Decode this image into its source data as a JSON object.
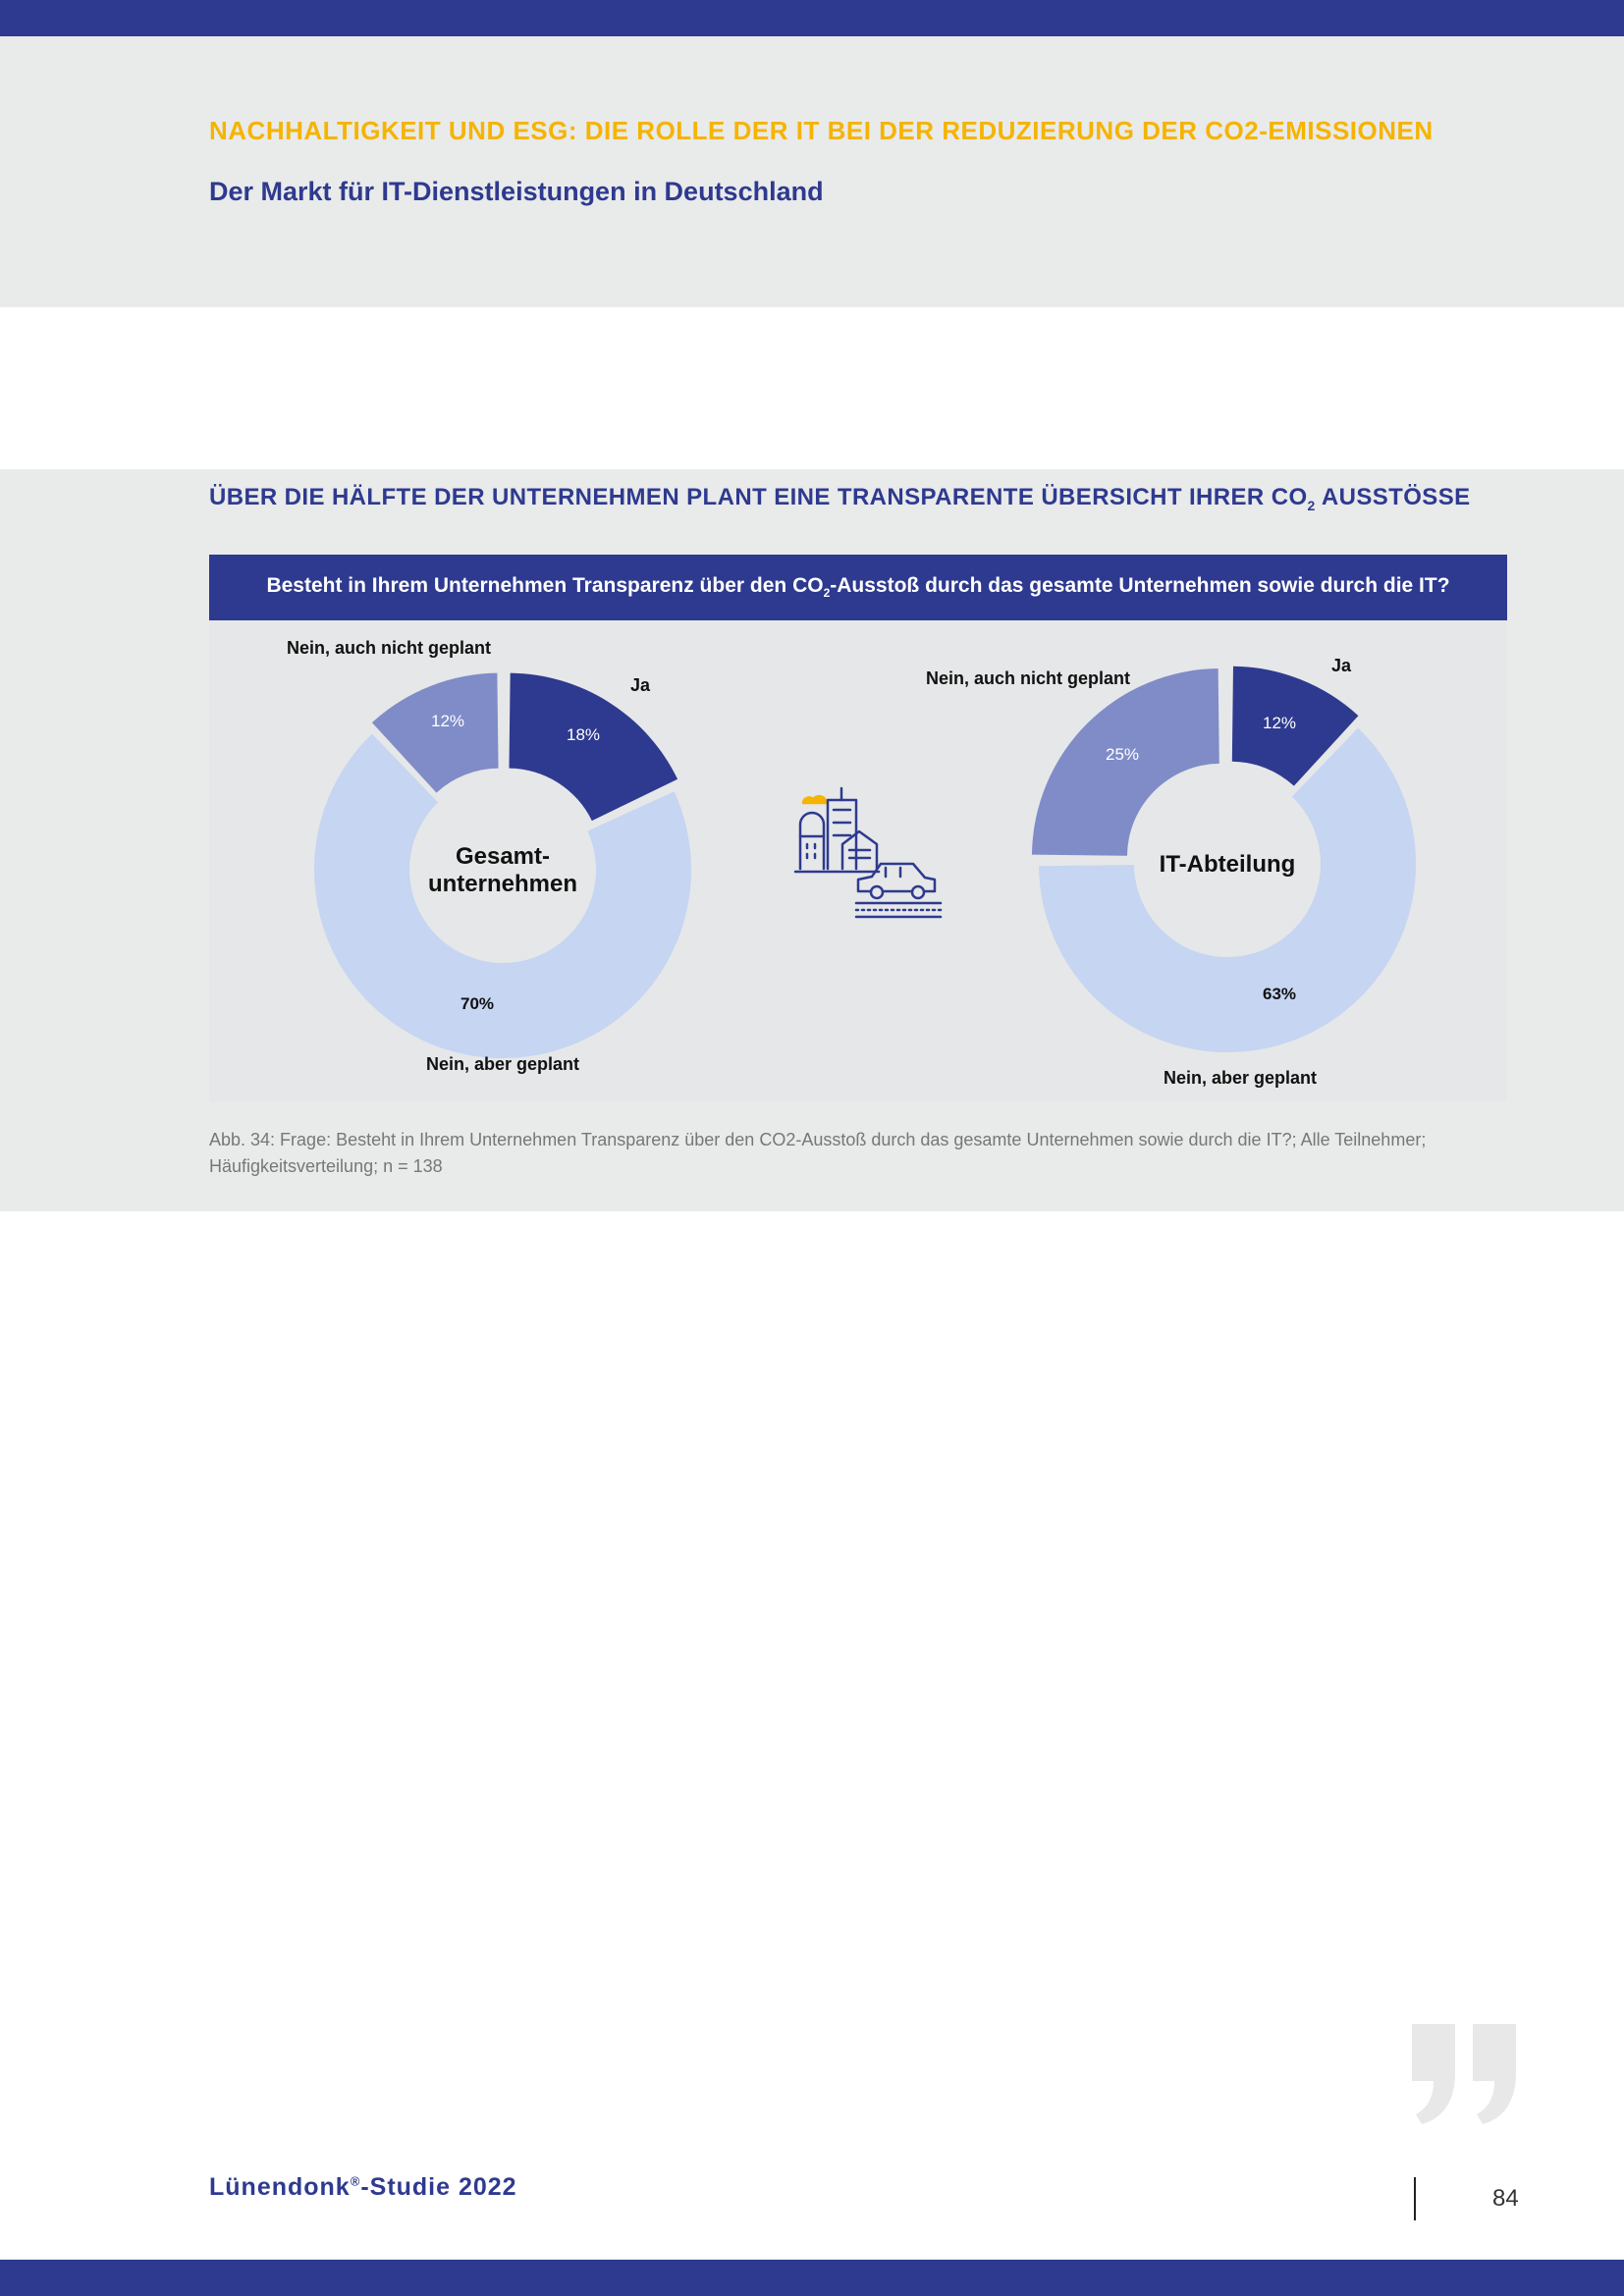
{
  "header": {
    "section_label": "NACHHALTIGKEIT UND ESG: DIE ROLLE DER IT BEI DER REDUZIERUNG DER CO2-EMISSIONEN",
    "subtitle": "Der Markt für IT-Dienstleistungen in Deutschland"
  },
  "chart_heading": {
    "before_sub": "ÜBER DIE HÄLFTE DER UNTERNEHMEN PLANT EINE TRANSPARENTE ÜBERSICHT IHRER CO",
    "sub": "2",
    "after_sub": " AUSSTÖSSE"
  },
  "question": {
    "before_sub": "Besteht in Ihrem Unternehmen Transparenz über den CO",
    "sub": "2",
    "after_sub": "-Ausstoß durch das gesamte Unternehmen sowie durch die IT?"
  },
  "chart_data": [
    {
      "type": "pie",
      "title": "Gesamt-unternehmen",
      "title_lines": [
        "Gesamt-",
        "unternehmen"
      ],
      "categories": [
        "Ja",
        "Nein, aber geplant",
        "Nein, auch nicht geplant"
      ],
      "values": [
        18,
        70,
        12
      ],
      "value_labels": [
        "18%",
        "70%",
        "12%"
      ],
      "colors": [
        "#2e3a8f",
        "#c5d5f2",
        "#7f8cc8"
      ],
      "label_colors": [
        "#ffffff",
        "#111111",
        "#ffffff"
      ],
      "donut": true
    },
    {
      "type": "pie",
      "title": "IT-Abteilung",
      "title_lines": [
        "IT-Abteilung"
      ],
      "categories": [
        "Ja",
        "Nein, aber geplant",
        "Nein, auch nicht geplant"
      ],
      "values": [
        12,
        63,
        25
      ],
      "value_labels": [
        "12%",
        "63%",
        "25%"
      ],
      "colors": [
        "#2e3a8f",
        "#c5d5f2",
        "#7f8cc8"
      ],
      "label_colors": [
        "#ffffff",
        "#111111",
        "#ffffff"
      ],
      "donut": true
    }
  ],
  "illustration": {
    "icon": "city-car-icon",
    "accent_color": "#f5b400",
    "line_color": "#2e3a8f"
  },
  "caption": "Abb. 34: Frage: Besteht in Ihrem Unternehmen Transparenz über den CO2-Ausstoß durch das gesamte Unternehmen sowie durch die IT?; Alle Teilnehmer; Häufigkeitsverteilung; n = 138",
  "footer": {
    "brand_before": "Lünendonk",
    "brand_sup": "®",
    "brand_after": "-Studie 2022",
    "page_number": "84"
  }
}
